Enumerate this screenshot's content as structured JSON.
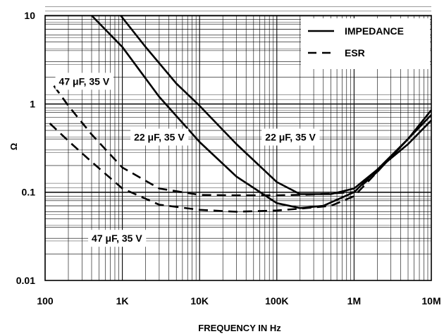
{
  "chart_data": {
    "type": "line",
    "xlabel": "FREQUENCY IN Hz",
    "ylabel": "Ω",
    "x_scale": "log",
    "y_scale": "log",
    "xlim": [
      100,
      10000000
    ],
    "ylim": [
      0.01,
      10
    ],
    "x_ticks": [
      {
        "value": 100,
        "label": "100"
      },
      {
        "value": 1000,
        "label": "1K"
      },
      {
        "value": 10000,
        "label": "10K"
      },
      {
        "value": 100000,
        "label": "100K"
      },
      {
        "value": 1000000,
        "label": "1M"
      },
      {
        "value": 10000000,
        "label": "10M"
      }
    ],
    "y_ticks": [
      {
        "value": 0.01,
        "label": "0.01"
      },
      {
        "value": 0.1,
        "label": "0.1"
      },
      {
        "value": 1,
        "label": "1"
      },
      {
        "value": 10,
        "label": "10"
      }
    ],
    "grid": true,
    "legend": {
      "position": "top-right",
      "entries": [
        {
          "label": "IMPEDANCE",
          "style": "solid"
        },
        {
          "label": "ESR",
          "style": "dashed"
        }
      ]
    },
    "series": [
      {
        "kind": "IMPEDANCE",
        "line_style": "solid",
        "points": [
          [
            400,
            10
          ],
          [
            1000,
            4.4
          ],
          [
            3000,
            1.2
          ],
          [
            10000,
            0.37
          ],
          [
            30000,
            0.15
          ],
          [
            100000,
            0.075
          ],
          [
            200000,
            0.066
          ],
          [
            400000,
            0.07
          ],
          [
            1000000,
            0.1
          ],
          [
            2000000,
            0.18
          ],
          [
            5000000,
            0.4
          ],
          [
            10000000,
            0.75
          ]
        ]
      },
      {
        "kind": "IMPEDANCE",
        "line_style": "solid",
        "points": [
          [
            950,
            10
          ],
          [
            2000,
            4.4
          ],
          [
            5000,
            1.7
          ],
          [
            10000,
            0.95
          ],
          [
            30000,
            0.35
          ],
          [
            100000,
            0.13
          ],
          [
            200000,
            0.095
          ],
          [
            500000,
            0.095
          ],
          [
            1000000,
            0.11
          ],
          [
            2000000,
            0.18
          ],
          [
            5000000,
            0.35
          ],
          [
            10000000,
            0.65
          ]
        ]
      },
      {
        "kind": "ESR",
        "line_style": "dashed",
        "points": [
          [
            130,
            1.6
          ],
          [
            200,
            0.95
          ],
          [
            400,
            0.45
          ],
          [
            1000,
            0.19
          ],
          [
            3000,
            0.11
          ],
          [
            10000,
            0.093
          ],
          [
            30000,
            0.092
          ],
          [
            100000,
            0.092
          ],
          [
            300000,
            0.094
          ],
          [
            1000000,
            0.1
          ],
          [
            2000000,
            0.17
          ],
          [
            5000000,
            0.4
          ],
          [
            10000000,
            0.85
          ]
        ]
      },
      {
        "kind": "ESR",
        "line_style": "dashed",
        "points": [
          [
            115,
            0.6
          ],
          [
            200,
            0.38
          ],
          [
            400,
            0.22
          ],
          [
            1000,
            0.11
          ],
          [
            3000,
            0.072
          ],
          [
            10000,
            0.063
          ],
          [
            30000,
            0.06
          ],
          [
            100000,
            0.062
          ],
          [
            200000,
            0.065
          ],
          [
            500000,
            0.07
          ],
          [
            1000000,
            0.09
          ],
          [
            2000000,
            0.17
          ],
          [
            5000000,
            0.4
          ],
          [
            10000000,
            0.85
          ]
        ]
      }
    ],
    "annotations": [
      {
        "text": "47 μF, 35 V",
        "x": 320,
        "y": 1.8
      },
      {
        "text": "22 μF, 35 V",
        "x": 3000,
        "y": 0.42
      },
      {
        "text": "22 μF, 35 V",
        "x": 150000,
        "y": 0.42
      },
      {
        "text": "47 μF, 35 V",
        "x": 850,
        "y": 0.03
      }
    ]
  }
}
